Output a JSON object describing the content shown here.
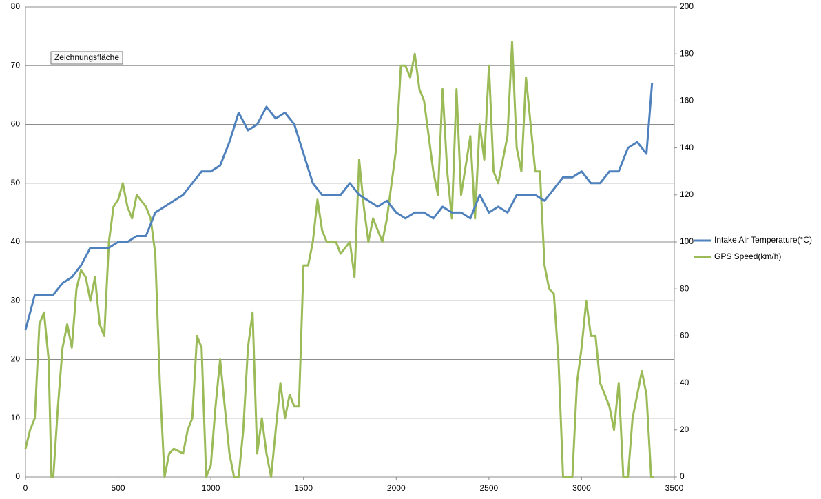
{
  "chart_data": {
    "type": "line",
    "annotation": "Zeichnungsfläche",
    "xlim": [
      0,
      3500
    ],
    "xticks": [
      0,
      500,
      1000,
      1500,
      2000,
      2500,
      3000,
      3500
    ],
    "ylim": [
      0,
      80
    ],
    "yticks": [
      0,
      10,
      20,
      30,
      40,
      50,
      60,
      70,
      80
    ],
    "y2lim": [
      0,
      200
    ],
    "y2ticks": [
      0,
      20,
      40,
      60,
      80,
      100,
      120,
      140,
      160,
      180,
      200
    ],
    "grid": true,
    "legend": "right",
    "series": [
      {
        "name": "Intake Air Temperature(°C)",
        "color": "#4f81bd",
        "axis": "y",
        "x": [
          0,
          50,
          100,
          150,
          200,
          250,
          300,
          350,
          400,
          450,
          500,
          550,
          600,
          650,
          700,
          750,
          800,
          850,
          900,
          950,
          1000,
          1050,
          1100,
          1150,
          1200,
          1250,
          1300,
          1350,
          1400,
          1450,
          1500,
          1550,
          1600,
          1650,
          1700,
          1750,
          1800,
          1850,
          1900,
          1950,
          2000,
          2050,
          2100,
          2150,
          2200,
          2250,
          2300,
          2350,
          2400,
          2450,
          2500,
          2550,
          2600,
          2650,
          2700,
          2750,
          2800,
          2850,
          2900,
          2950,
          3000,
          3050,
          3100,
          3150,
          3200,
          3250,
          3300,
          3350,
          3380
        ],
        "values": [
          25,
          31,
          31,
          31,
          33,
          34,
          36,
          39,
          39,
          39,
          40,
          40,
          41,
          41,
          45,
          46,
          47,
          48,
          50,
          52,
          52,
          53,
          57,
          62,
          59,
          60,
          63,
          61,
          62,
          60,
          55,
          50,
          48,
          48,
          48,
          50,
          48,
          47,
          46,
          47,
          45,
          44,
          45,
          45,
          44,
          46,
          45,
          45,
          44,
          48,
          45,
          46,
          45,
          48,
          48,
          48,
          47,
          49,
          51,
          51,
          52,
          50,
          50,
          52,
          52,
          56,
          57,
          55,
          67
        ]
      },
      {
        "name": "GPS Speed(km/h)",
        "color": "#9bbb59",
        "axis": "y2",
        "x": [
          0,
          25,
          50,
          75,
          100,
          125,
          140,
          150,
          175,
          200,
          225,
          250,
          275,
          300,
          325,
          350,
          375,
          400,
          425,
          450,
          475,
          500,
          525,
          550,
          575,
          600,
          650,
          675,
          700,
          725,
          750,
          775,
          800,
          850,
          875,
          900,
          925,
          950,
          975,
          1000,
          1025,
          1050,
          1075,
          1100,
          1125,
          1150,
          1175,
          1200,
          1225,
          1250,
          1275,
          1300,
          1325,
          1350,
          1375,
          1400,
          1425,
          1450,
          1475,
          1500,
          1525,
          1550,
          1575,
          1600,
          1625,
          1650,
          1675,
          1700,
          1750,
          1775,
          1800,
          1825,
          1850,
          1875,
          1900,
          1925,
          1950,
          2000,
          2025,
          2050,
          2075,
          2100,
          2125,
          2150,
          2200,
          2225,
          2250,
          2275,
          2300,
          2325,
          2350,
          2400,
          2425,
          2450,
          2475,
          2500,
          2525,
          2550,
          2600,
          2625,
          2650,
          2675,
          2700,
          2725,
          2750,
          2775,
          2800,
          2825,
          2850,
          2875,
          2900,
          2950,
          2975,
          3000,
          3025,
          3050,
          3075,
          3100,
          3125,
          3150,
          3175,
          3200,
          3225,
          3250,
          3275,
          3300,
          3325,
          3350,
          3375,
          3390
        ],
        "values": [
          12,
          20,
          25,
          65,
          70,
          50,
          0,
          0,
          30,
          55,
          65,
          55,
          80,
          88,
          85,
          75,
          85,
          65,
          60,
          100,
          115,
          118,
          125,
          115,
          110,
          120,
          115,
          110,
          95,
          40,
          0,
          10,
          12,
          10,
          20,
          25,
          60,
          55,
          0,
          5,
          30,
          50,
          30,
          10,
          0,
          0,
          20,
          55,
          70,
          10,
          25,
          10,
          0,
          20,
          40,
          25,
          35,
          30,
          30,
          90,
          90,
          100,
          118,
          105,
          100,
          100,
          100,
          95,
          100,
          85,
          135,
          115,
          100,
          110,
          105,
          100,
          110,
          140,
          175,
          175,
          170,
          180,
          165,
          160,
          130,
          120,
          165,
          130,
          110,
          165,
          120,
          145,
          110,
          150,
          135,
          175,
          130,
          125,
          145,
          185,
          140,
          130,
          170,
          150,
          130,
          130,
          90,
          80,
          78,
          50,
          0,
          0,
          40,
          55,
          75,
          60,
          60,
          40,
          35,
          30,
          20,
          40,
          0,
          0,
          25,
          35,
          45,
          35,
          0,
          0
        ]
      }
    ]
  }
}
